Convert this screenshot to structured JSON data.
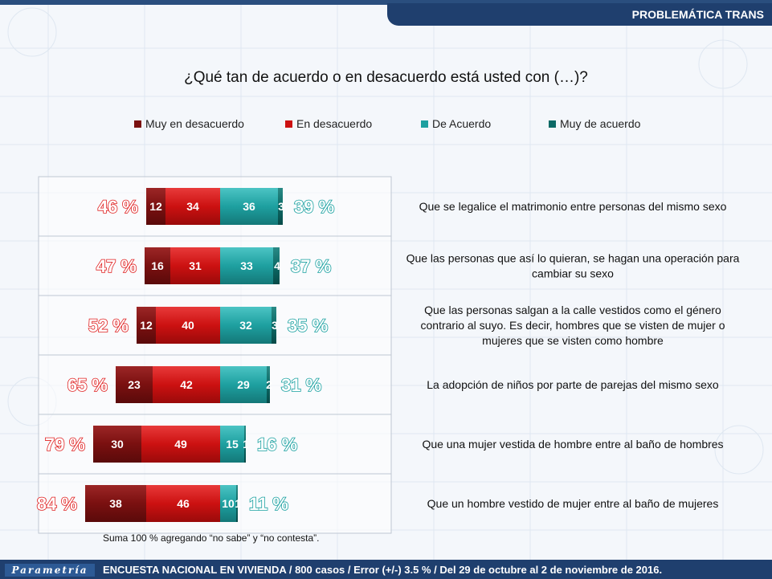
{
  "header": {
    "section_title": "PROBLEMÁTICA TRANS"
  },
  "question": "¿Qué tan de acuerdo o en desacuerdo está usted con (…)?",
  "chart_data": {
    "type": "bar",
    "orientation": "horizontal-diverging",
    "grid": true,
    "legend_position": "top",
    "series": [
      {
        "name": "Muy en desacuerdo",
        "color": "#7a1010",
        "values": [
          12,
          16,
          12,
          23,
          30,
          38
        ]
      },
      {
        "name": "En desacuerdo",
        "color": "#cc1111",
        "values": [
          34,
          31,
          40,
          42,
          49,
          46
        ]
      },
      {
        "name": "De Acuerdo",
        "color": "#1ea0a0",
        "values": [
          36,
          33,
          32,
          29,
          15,
          10
        ]
      },
      {
        "name": "Muy de acuerdo",
        "color": "#0c6a66",
        "values": [
          3,
          4,
          3,
          2,
          1,
          1
        ]
      }
    ],
    "categories": [
      "Que se legalice el matrimonio entre personas del mismo sexo",
      "Que las personas que así lo quieran, se hagan una operación para cambiar su sexo",
      "Que las personas salgan a la calle vestidos como el género contrario al suyo. Es decir, hombres que se visten de mujer o mujeres que se visten como hombre",
      "La adopción de niños por parte de parejas del mismo sexo",
      "Que una mujer vestida de hombre entre al baño de hombres",
      "Que un hombre vestido de mujer entre al baño de mujeres"
    ],
    "category_lines": [
      [
        "Que se legalice el matrimonio entre personas del mismo sexo"
      ],
      [
        "Que las personas que así lo quieran, se hagan una operación para",
        "cambiar su sexo"
      ],
      [
        "Que las personas salgan a la calle vestidos como el género",
        "contrario al suyo. Es decir, hombres que se visten de mujer o",
        "mujeres que se visten como hombre"
      ],
      [
        "La adopción de niños por parte de parejas del mismo sexo"
      ],
      [
        "Que una mujer vestida de hombre entre al baño de hombres"
      ],
      [
        "Que un hombre vestido de mujer entre al baño de mujeres"
      ]
    ],
    "value_labels": [
      [
        "12",
        "34",
        "36",
        "3"
      ],
      [
        "16",
        "31",
        "33",
        "4"
      ],
      [
        "12",
        "40",
        "32",
        "3"
      ],
      [
        "23",
        "42",
        "29",
        "2"
      ],
      [
        "30",
        "49",
        "15",
        "1"
      ],
      [
        "38",
        "46",
        "10",
        "1"
      ]
    ],
    "disagree_totals": [
      "46 %",
      "47 %",
      "52 %",
      "65 %",
      "79 %",
      "84 %"
    ],
    "agree_totals": [
      "39 %",
      "37 %",
      "35 %",
      "31 %",
      "16 %",
      "11 %"
    ],
    "disagree_color": "#e02020",
    "agree_color": "#18a0a0"
  },
  "note": "Suma 100 %  agregando “no sabe” y “no contesta”.",
  "footer": {
    "logo": "Parametría",
    "text": "ENCUESTA NACIONAL EN VIVIENDA / 800 casos / Error (+/-) 3.5 % / Del 29 de octubre al 2 de noviembre de 2016."
  }
}
